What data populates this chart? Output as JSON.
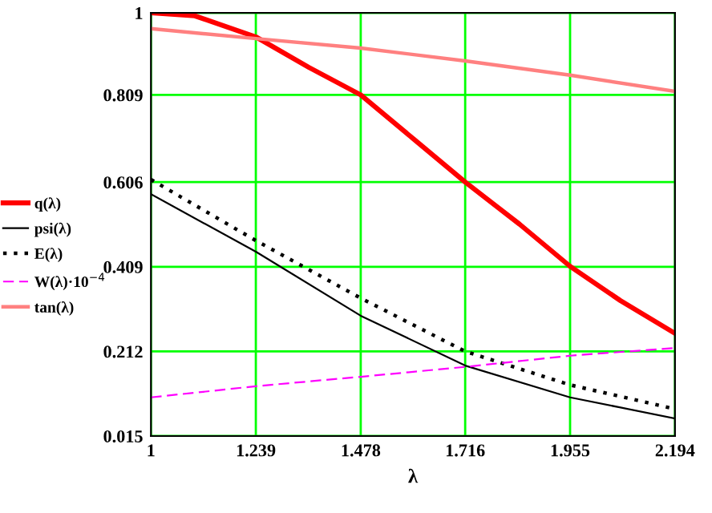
{
  "chart_data": {
    "type": "line",
    "xlabel": "λ",
    "x": [
      1,
      1.1,
      1.239,
      1.36,
      1.478,
      1.6,
      1.716,
      1.84,
      1.955,
      2.07,
      2.194
    ],
    "series": [
      {
        "name": "q(λ)",
        "color": "#ff0000",
        "values": [
          1.0,
          0.993,
          0.944,
          0.873,
          0.809,
          0.705,
          0.606,
          0.508,
          0.41,
          0.33,
          0.254
        ],
        "line_style": "solid"
      },
      {
        "name": "psi(λ)",
        "color": "#000000",
        "values": [
          0.578,
          null,
          0.444,
          null,
          0.295,
          null,
          0.179,
          null,
          0.105,
          null,
          0.056
        ],
        "line_style": "solid"
      },
      {
        "name": "E(λ)",
        "color": "#000000",
        "values": [
          0.612,
          null,
          0.47,
          null,
          0.336,
          null,
          0.212,
          null,
          0.134,
          null,
          0.078
        ],
        "line_style": "dotted"
      },
      {
        "name": "W(λ)·10$^{−4}$",
        "color": "#ff00ff",
        "values": [
          0.105,
          null,
          0.131,
          null,
          0.153,
          null,
          0.176,
          null,
          0.202,
          null,
          0.22
        ],
        "line_style": "dashed"
      },
      {
        "name": "tan(λ)",
        "color": "#ff8080",
        "values": [
          0.963,
          null,
          0.94,
          null,
          0.918,
          null,
          0.888,
          null,
          0.855,
          null,
          0.817
        ],
        "line_style": "solid"
      }
    ],
    "xlim": [
      1,
      2.194
    ],
    "ylim": [
      0.015,
      1
    ],
    "xticks": [
      1,
      1.239,
      1.478,
      1.716,
      1.955,
      2.194
    ],
    "yticks": [
      0.015,
      0.212,
      0.409,
      0.606,
      0.809,
      1
    ],
    "grid": true,
    "legend": "left",
    "marker": "none"
  }
}
